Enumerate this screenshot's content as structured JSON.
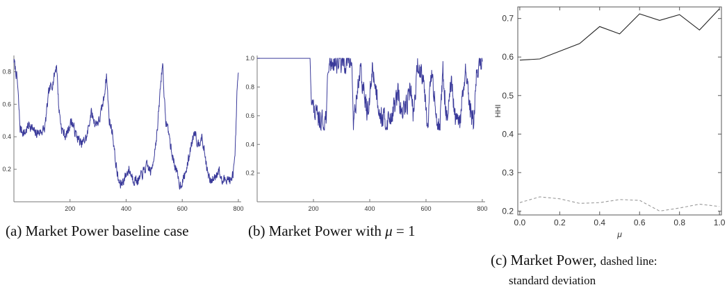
{
  "captions": {
    "a": "(a) Market Power baseline case",
    "b_prefix": "(b) Market Power with",
    "b_mu": "μ",
    "b_suffix": "= 1",
    "c_prefix": "(c) Market Power,",
    "c_small1": "dashed line:",
    "c_small2": "standard deviation"
  },
  "chart_data": [
    {
      "type": "line",
      "xlim": [
        0,
        810
      ],
      "ylim": [
        0,
        0.9
      ],
      "xticks": [
        200,
        400,
        600,
        800
      ],
      "yticks": [
        0.2,
        0.4,
        0.6,
        0.8
      ],
      "xticklabels": [
        "200",
        "400",
        "600",
        "800"
      ],
      "yticklabels": [
        "0.2",
        "0.4",
        "0.6",
        "0.8"
      ],
      "color": "#3a3a9a",
      "samples": 800,
      "keypoints": [
        [
          0,
          0.87
        ],
        [
          12,
          0.75
        ],
        [
          22,
          0.45
        ],
        [
          38,
          0.42
        ],
        [
          55,
          0.48
        ],
        [
          75,
          0.42
        ],
        [
          95,
          0.43
        ],
        [
          110,
          0.45
        ],
        [
          125,
          0.68
        ],
        [
          140,
          0.74
        ],
        [
          152,
          0.85
        ],
        [
          160,
          0.58
        ],
        [
          170,
          0.45
        ],
        [
          185,
          0.4
        ],
        [
          205,
          0.5
        ],
        [
          220,
          0.42
        ],
        [
          240,
          0.35
        ],
        [
          260,
          0.4
        ],
        [
          275,
          0.55
        ],
        [
          290,
          0.48
        ],
        [
          305,
          0.5
        ],
        [
          320,
          0.63
        ],
        [
          330,
          0.78
        ],
        [
          340,
          0.5
        ],
        [
          352,
          0.42
        ],
        [
          362,
          0.25
        ],
        [
          372,
          0.13
        ],
        [
          380,
          0.1
        ],
        [
          395,
          0.15
        ],
        [
          410,
          0.2
        ],
        [
          425,
          0.14
        ],
        [
          445,
          0.13
        ],
        [
          460,
          0.18
        ],
        [
          475,
          0.22
        ],
        [
          490,
          0.18
        ],
        [
          502,
          0.32
        ],
        [
          512,
          0.45
        ],
        [
          522,
          0.7
        ],
        [
          530,
          0.86
        ],
        [
          540,
          0.5
        ],
        [
          550,
          0.45
        ],
        [
          562,
          0.3
        ],
        [
          575,
          0.22
        ],
        [
          585,
          0.14
        ],
        [
          592,
          0.1
        ],
        [
          605,
          0.14
        ],
        [
          618,
          0.22
        ],
        [
          632,
          0.35
        ],
        [
          645,
          0.45
        ],
        [
          655,
          0.35
        ],
        [
          668,
          0.4
        ],
        [
          680,
          0.3
        ],
        [
          690,
          0.18
        ],
        [
          700,
          0.12
        ],
        [
          715,
          0.15
        ],
        [
          730,
          0.2
        ],
        [
          742,
          0.12
        ],
        [
          760,
          0.15
        ],
        [
          775,
          0.12
        ],
        [
          788,
          0.25
        ],
        [
          795,
          0.65
        ],
        [
          800,
          0.8
        ]
      ],
      "noise": 0.045,
      "seed": 7
    },
    {
      "type": "line",
      "xlim": [
        0,
        810
      ],
      "ylim": [
        0,
        1.02
      ],
      "xticks": [
        200,
        400,
        600,
        800
      ],
      "yticks": [
        0.2,
        0.4,
        0.6,
        0.8,
        1.0
      ],
      "xticklabels": [
        "200",
        "400",
        "600",
        "800"
      ],
      "yticklabels": [
        "0.2",
        "0.4",
        "0.6",
        "0.8",
        "1.0"
      ],
      "color": "#3a3a9a",
      "samples": 800,
      "keypoints": [
        [
          0,
          1.0
        ],
        [
          180,
          1.0
        ],
        [
          188,
          1.0
        ],
        [
          194,
          0.72
        ],
        [
          202,
          0.62
        ],
        [
          215,
          0.58
        ],
        [
          235,
          0.55
        ],
        [
          245,
          0.6
        ],
        [
          255,
          0.98
        ],
        [
          280,
          0.98
        ],
        [
          300,
          0.97
        ],
        [
          320,
          0.98
        ],
        [
          336,
          0.98
        ],
        [
          342,
          0.55
        ],
        [
          352,
          0.7
        ],
        [
          365,
          0.92
        ],
        [
          380,
          0.75
        ],
        [
          395,
          0.6
        ],
        [
          410,
          0.95
        ],
        [
          420,
          0.8
        ],
        [
          440,
          0.6
        ],
        [
          460,
          0.55
        ],
        [
          480,
          0.62
        ],
        [
          500,
          0.75
        ],
        [
          515,
          0.6
        ],
        [
          530,
          0.68
        ],
        [
          545,
          0.8
        ],
        [
          555,
          0.6
        ],
        [
          570,
          0.94
        ],
        [
          590,
          0.9
        ],
        [
          605,
          0.55
        ],
        [
          620,
          0.9
        ],
        [
          635,
          0.6
        ],
        [
          650,
          0.55
        ],
        [
          660,
          0.9
        ],
        [
          675,
          0.55
        ],
        [
          690,
          0.82
        ],
        [
          705,
          0.55
        ],
        [
          720,
          0.55
        ],
        [
          740,
          0.9
        ],
        [
          755,
          0.65
        ],
        [
          770,
          0.55
        ],
        [
          780,
          0.92
        ],
        [
          790,
          0.96
        ],
        [
          800,
          0.99
        ]
      ],
      "noise": 0.11,
      "floor": 0.5,
      "ceiling": 1.0,
      "seed": 13
    },
    {
      "type": "line",
      "xlabel": "μ",
      "ylabel": "HHI",
      "xlim": [
        -0.01,
        1.01
      ],
      "ylim": [
        0.19,
        0.73
      ],
      "xticks": [
        0.0,
        0.2,
        0.4,
        0.6,
        0.8,
        1.0
      ],
      "yticks": [
        0.2,
        0.3,
        0.4,
        0.5,
        0.6,
        0.7
      ],
      "xticklabels": [
        "0.0",
        "0.2",
        "0.4",
        "0.6",
        "0.8",
        "1.0"
      ],
      "yticklabels": [
        "0.2",
        "0.3",
        "0.4",
        "0.5",
        "0.6",
        "0.7"
      ],
      "x": [
        0.0,
        0.1,
        0.2,
        0.3,
        0.4,
        0.5,
        0.6,
        0.7,
        0.8,
        0.9,
        1.0
      ],
      "series": [
        {
          "values": [
            0.592,
            0.595,
            0.615,
            0.635,
            0.679,
            0.66,
            0.712,
            0.695,
            0.71,
            0.67,
            0.725
          ],
          "style": "solid",
          "color": "#222222"
        },
        {
          "values": [
            0.222,
            0.237,
            0.232,
            0.22,
            0.222,
            0.23,
            0.228,
            0.2,
            0.208,
            0.218,
            0.212
          ],
          "style": "dashed",
          "color": "#999999"
        }
      ]
    }
  ]
}
